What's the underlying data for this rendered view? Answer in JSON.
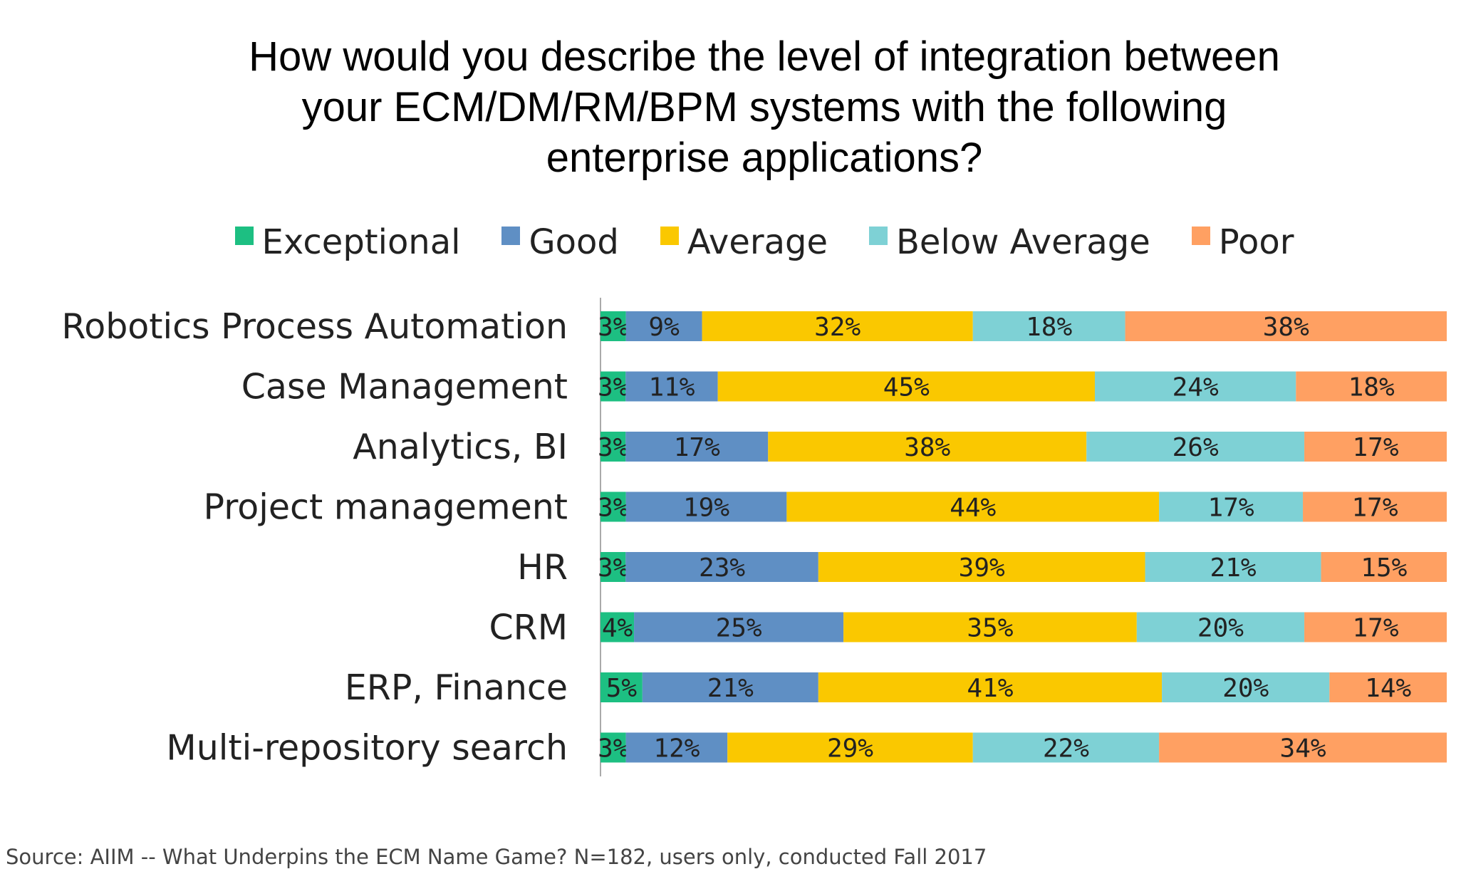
{
  "chart_data": {
    "type": "bar",
    "orientation": "horizontal",
    "stacked": "100%",
    "title": "How would you describe the level of integration between your ECM/DM/RM/BPM systems with the following enterprise applications?",
    "title_lines": [
      "How would you describe the level of integration between",
      "your ECM/DM/RM/BPM systems with the following",
      "enterprise applications?"
    ],
    "legend_position": "top",
    "grid": false,
    "categories": [
      "Robotics Process Automation",
      "Case Management",
      "Analytics, BI",
      "Project management",
      "HR",
      "CRM",
      "ERP, Finance",
      "Multi-repository search"
    ],
    "series": [
      {
        "name": "Exceptional",
        "color": "#1DBF82",
        "values": [
          3,
          3,
          3,
          3,
          3,
          4,
          5,
          3
        ]
      },
      {
        "name": "Good",
        "color": "#5F8FC4",
        "values": [
          9,
          11,
          17,
          19,
          23,
          25,
          21,
          12
        ]
      },
      {
        "name": "Average",
        "color": "#FAC800",
        "values": [
          32,
          45,
          38,
          44,
          39,
          35,
          41,
          29
        ]
      },
      {
        "name": "Below Average",
        "color": "#7ED1D5",
        "values": [
          18,
          24,
          26,
          17,
          21,
          20,
          20,
          22
        ]
      },
      {
        "name": "Poor",
        "color": "#FFA062",
        "values": [
          38,
          18,
          17,
          17,
          15,
          17,
          14,
          34
        ]
      }
    ],
    "value_suffix": "%"
  },
  "source": "Source: AIIM -- What Underpins the ECM Name Game? N=182, users only, conducted Fall 2017"
}
